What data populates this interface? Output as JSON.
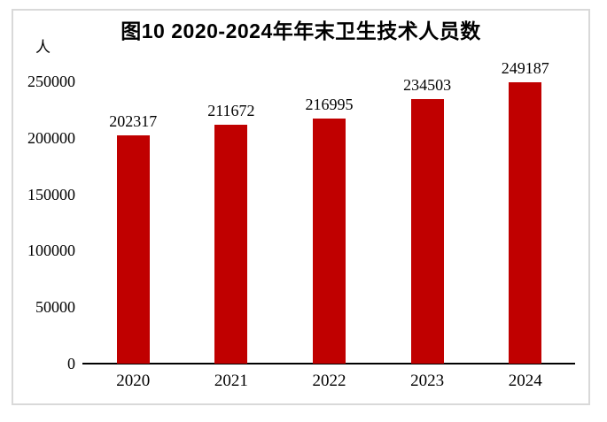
{
  "title": "图10 2020-2024年年末卫生技术人员数",
  "unit_label": "人",
  "colors": {
    "bar": "#c00000",
    "axis": "#000000",
    "frame_border": "#d9d9d9",
    "text": "#000000",
    "background": "#ffffff"
  },
  "chart_data": {
    "type": "bar",
    "title": "图10 2020-2024年年末卫生技术人员数",
    "categories": [
      "2020",
      "2021",
      "2022",
      "2023",
      "2024"
    ],
    "values": [
      202317,
      211672,
      216995,
      234503,
      249187
    ],
    "data_labels": [
      "202317",
      "211672",
      "216995",
      "234503",
      "249187"
    ],
    "xlabel": "",
    "ylabel": "人",
    "ylim": [
      0,
      250000
    ],
    "y_ticks": [
      0,
      50000,
      100000,
      150000,
      200000,
      250000
    ],
    "grid": false,
    "legend": false,
    "data_labels_shown": true
  }
}
